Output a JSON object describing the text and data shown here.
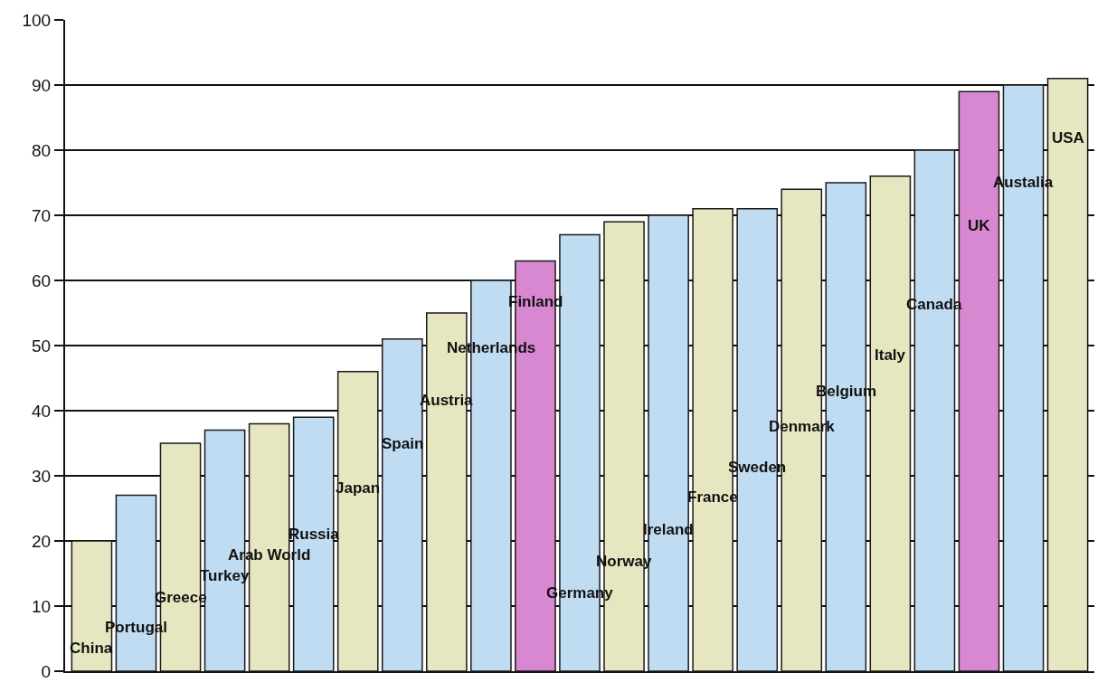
{
  "chart_data": {
    "type": "bar",
    "categories": [
      "China",
      "Portugal",
      "Greece",
      "Turkey",
      "Arab World",
      "Russia",
      "Japan",
      "Spain",
      "Austria",
      "Netherlands",
      "Finland",
      "Germany",
      "Norway",
      "Ireland",
      "France",
      "Sweden",
      "Denmark",
      "Belgium",
      "Italy",
      "Canada",
      "UK",
      "Austalia",
      "USA"
    ],
    "values": [
      20,
      27,
      35,
      37,
      38,
      39,
      46,
      51,
      55,
      60,
      63,
      67,
      69,
      70,
      71,
      71,
      74,
      75,
      76,
      80,
      89,
      90,
      91
    ],
    "colors": [
      "#e6e6c0",
      "#c0dcf2",
      "#e6e6c0",
      "#c0dcf2",
      "#e6e6c0",
      "#c0dcf2",
      "#e6e6c0",
      "#c0dcf2",
      "#e6e6c0",
      "#c0dcf2",
      "#d888d0",
      "#c0dcf2",
      "#e6e6c0",
      "#c0dcf2",
      "#e6e6c0",
      "#c0dcf2",
      "#e6e6c0",
      "#c0dcf2",
      "#e6e6c0",
      "#c0dcf2",
      "#d888d0",
      "#c0dcf2",
      "#e6e6c0"
    ],
    "ylim": [
      0,
      100
    ],
    "yticks": [
      0,
      10,
      20,
      30,
      40,
      50,
      60,
      70,
      80,
      90,
      100
    ],
    "grid": "y",
    "tick_labels": "y"
  }
}
